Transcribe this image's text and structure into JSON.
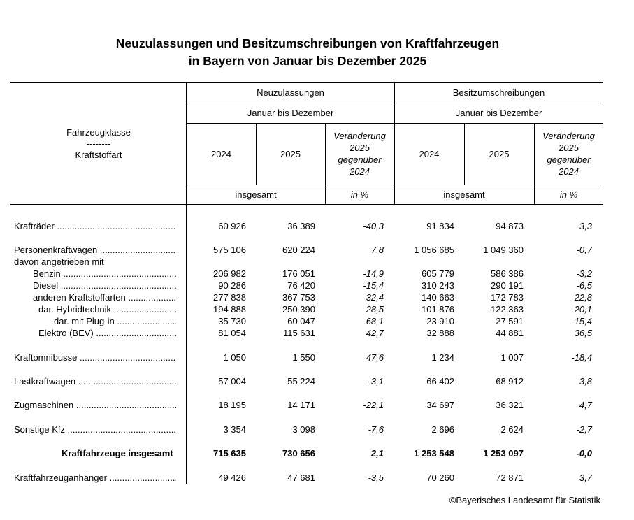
{
  "title": {
    "line1": "Neuzulassungen und Besitzumschreibungen von Kraftfahrzeugen",
    "line2": "in Bayern von Januar bis Dezember 2025"
  },
  "header": {
    "row_label_1": "Fahrzeugklasse",
    "row_label_sep": "--------",
    "row_label_2": "Kraftstoffart",
    "group1": "Neuzulassungen",
    "group2": "Besitzumschreibungen",
    "period": "Januar bis Dezember",
    "year1": "2024",
    "year2": "2025",
    "change": [
      "Veränderung",
      "2025",
      "gegenüber",
      "2024"
    ],
    "unit_total": "insgesamt",
    "unit_pct": "in %"
  },
  "rows": [
    {
      "label": "Krafträder",
      "indent": 0,
      "dots": true,
      "values": [
        "60 926",
        "36 389",
        "-40,3",
        "91 834",
        "94 873",
        "3,3"
      ]
    },
    {
      "label": "Personenkraftwagen",
      "indent": 0,
      "dots": true,
      "values": [
        "575 106",
        "620 224",
        "7,8",
        "1 056 685",
        "1 049 360",
        "-0,7"
      ]
    },
    {
      "label": "davon angetrieben mit",
      "indent": 0,
      "dots": false,
      "values": [
        "",
        "",
        "",
        "",
        "",
        ""
      ]
    },
    {
      "label": "Benzin",
      "indent": 1,
      "dots": true,
      "values": [
        "206 982",
        "176 051",
        "-14,9",
        "605 779",
        "586 386",
        "-3,2"
      ]
    },
    {
      "label": "Diesel",
      "indent": 1,
      "dots": true,
      "values": [
        "90 286",
        "76 420",
        "-15,4",
        "310 243",
        "290 191",
        "-6,5"
      ]
    },
    {
      "label": "anderen Kraftstoffarten",
      "indent": 1,
      "dots": true,
      "values": [
        "277 838",
        "367 753",
        "32,4",
        "140 663",
        "172 783",
        "22,8"
      ]
    },
    {
      "label": "dar. Hybridtechnik",
      "indent": 2,
      "dots": true,
      "values": [
        "194 888",
        "250 390",
        "28,5",
        "101 876",
        "122 363",
        "20,1"
      ]
    },
    {
      "label": "dar. mit Plug-in",
      "indent": 3,
      "dots": true,
      "values": [
        "35 730",
        "60 047",
        "68,1",
        "23 910",
        "27 591",
        "15,4"
      ]
    },
    {
      "label": "Elektro (BEV)",
      "indent": 2,
      "dots": true,
      "values": [
        "81 054",
        "115 631",
        "42,7",
        "32 888",
        "44 881",
        "36,5"
      ]
    },
    {
      "label": "Kraftomnibusse",
      "indent": 0,
      "dots": true,
      "values": [
        "1 050",
        "1 550",
        "47,6",
        "1 234",
        "1 007",
        "-18,4"
      ]
    },
    {
      "label": "Lastkraftwagen",
      "indent": 0,
      "dots": true,
      "values": [
        "57 004",
        "55 224",
        "-3,1",
        "66 402",
        "68 912",
        "3,8"
      ]
    },
    {
      "label": "Zugmaschinen",
      "indent": 0,
      "dots": true,
      "values": [
        "18 195",
        "14 171",
        "-22,1",
        "34 697",
        "36 321",
        "4,7"
      ]
    },
    {
      "label": "Sonstige Kfz",
      "indent": 0,
      "dots": true,
      "values": [
        "3 354",
        "3 098",
        "-7,6",
        "2 696",
        "2 624",
        "-2,7"
      ]
    },
    {
      "label": "Kraftfahrzeuge insgesamt",
      "indent": 0,
      "dots": false,
      "bold": true,
      "values": [
        "715 635",
        "730 656",
        "2,1",
        "1 253 548",
        "1 253 097",
        "-0,0"
      ]
    },
    {
      "label": "Kraftfahrzeuganhänger",
      "indent": 0,
      "dots": true,
      "values": [
        "49 426",
        "47 681",
        "-3,5",
        "70 260",
        "72 871",
        "3,7"
      ]
    }
  ],
  "footer": "©Bayerisches Landesamt für Statistik"
}
